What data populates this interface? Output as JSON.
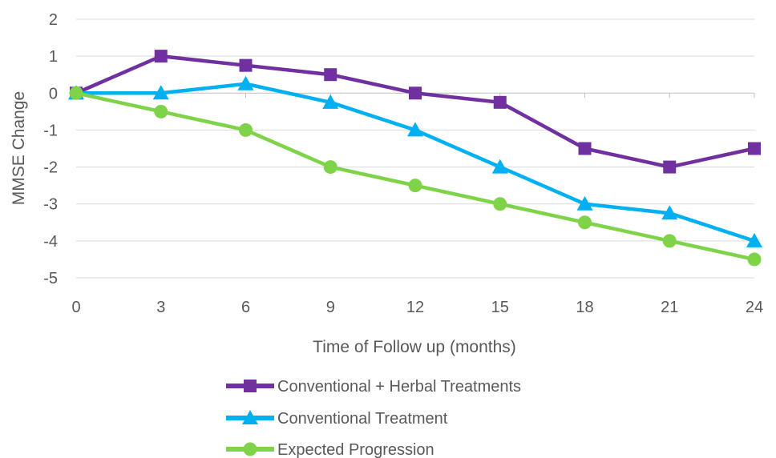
{
  "chart_data": {
    "type": "line",
    "title": "",
    "xlabel": "Time of Follow up (months)",
    "ylabel": "MMSE Change",
    "x": [
      0,
      3,
      6,
      9,
      12,
      15,
      18,
      21,
      24
    ],
    "xlim": [
      0,
      24
    ],
    "ylim": [
      -5,
      2
    ],
    "yticks": [
      2,
      1,
      0,
      -1,
      -2,
      -3,
      -4,
      -5
    ],
    "grid": "horizontal",
    "legend_position": "bottom",
    "series": [
      {
        "name": "Conventional + Herbal Treatments",
        "marker": "square",
        "color": "#7030A0",
        "values": [
          0,
          1,
          0.75,
          0.5,
          0,
          -0.25,
          -1.5,
          -2,
          -1.5
        ]
      },
      {
        "name": "Conventional Treatment",
        "marker": "triangle",
        "color": "#00B0F0",
        "values": [
          0,
          0,
          0.25,
          -0.25,
          -1,
          -2,
          -3,
          -3.25,
          -4
        ]
      },
      {
        "name": "Expected Progression",
        "marker": "circle",
        "color": "#7ED348",
        "values": [
          0,
          -0.5,
          -1,
          -2,
          -2.5,
          -3,
          -3.5,
          -4,
          -4.5
        ]
      }
    ]
  }
}
